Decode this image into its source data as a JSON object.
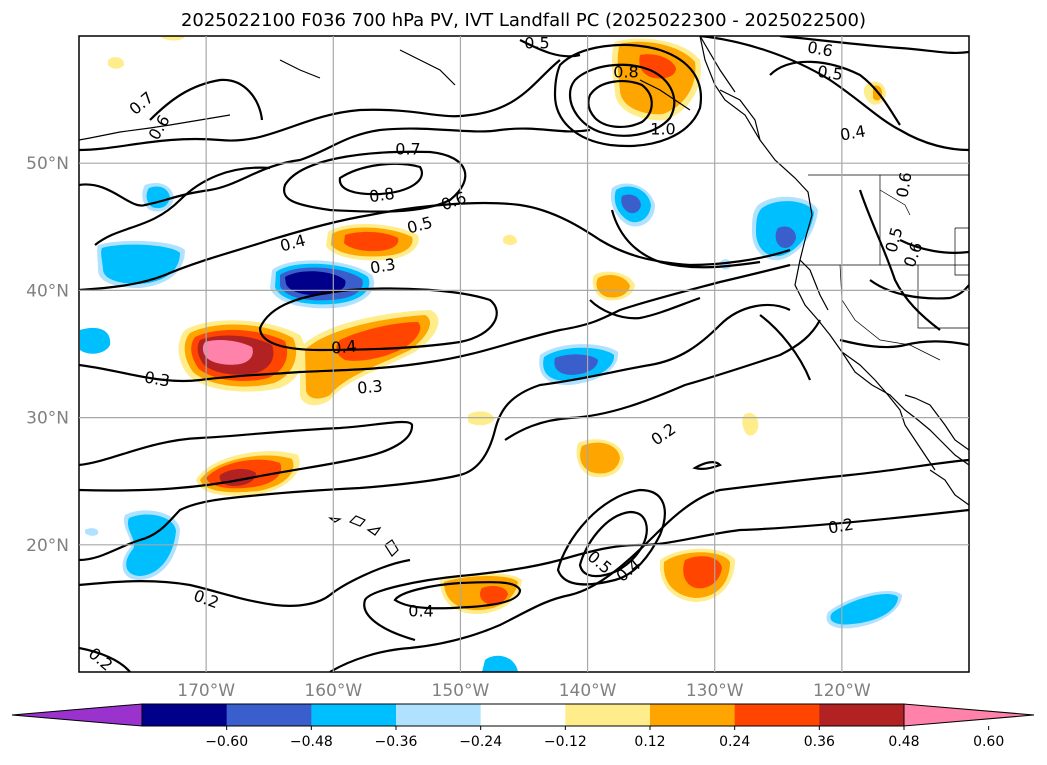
{
  "title": "2025022100 F036 700 hPa PV, IVT Landfall PC (2025022300 - 2025022500)",
  "map": {
    "lon_range": [
      180,
      110
    ],
    "lat_range": [
      10,
      60
    ],
    "lat_ticks": [
      "50°N",
      "40°N",
      "30°N",
      "20°N"
    ],
    "lon_ticks": [
      "170°W",
      "160°W",
      "150°W",
      "140°W",
      "130°W",
      "120°W"
    ],
    "grid": true
  },
  "colorbar": {
    "ticks": [
      "−0.60",
      "−0.48",
      "−0.36",
      "−0.24",
      "−0.12",
      "0.12",
      "0.24",
      "0.36",
      "0.48",
      "0.60"
    ],
    "colors": [
      "#9a32cd",
      "#00008b",
      "#3a5fcd",
      "#00bfff",
      "#b0e2ff",
      "#ffffff",
      "#ffec8b",
      "#ffa500",
      "#ff4500",
      "#b22222",
      "#ff82ab"
    ]
  },
  "contour_labels": [
    "0.5",
    "0.8",
    "1.0",
    "0.6",
    "0.5",
    "0.4",
    "0.6",
    "0.7",
    "0.7",
    "0.8",
    "0.6",
    "0.5",
    "0.4",
    "0.3",
    "0.4",
    "0.3",
    "0.3",
    "0.2",
    "0.2",
    "0.2",
    "0.5",
    "0.4",
    "0.4",
    "0.2",
    "0.5",
    "0.6",
    "0.6"
  ]
}
